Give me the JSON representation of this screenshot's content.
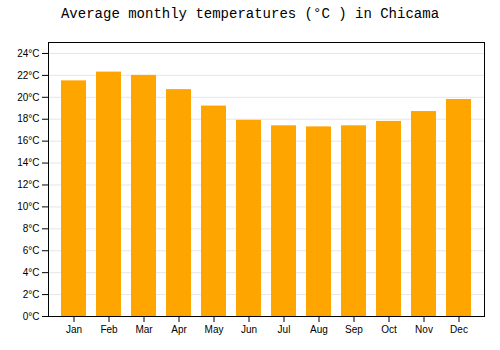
{
  "chart_data": {
    "type": "bar",
    "title": "Average monthly temperatures (°C ) in Chicama",
    "categories": [
      "Jan",
      "Feb",
      "Mar",
      "Apr",
      "May",
      "Jun",
      "Jul",
      "Aug",
      "Sep",
      "Oct",
      "Nov",
      "Dec"
    ],
    "values": [
      21.5,
      22.3,
      22.0,
      20.7,
      19.2,
      17.9,
      17.4,
      17.3,
      17.4,
      17.8,
      18.7,
      19.8
    ],
    "color": "#FFA500",
    "ylim": [
      0,
      25
    ],
    "yticks": [
      {
        "value": 0,
        "label": "0°C"
      },
      {
        "value": 2,
        "label": "2°C"
      },
      {
        "value": 4,
        "label": "4°C"
      },
      {
        "value": 6,
        "label": "6°C"
      },
      {
        "value": 8,
        "label": "8°C"
      },
      {
        "value": 10,
        "label": "10°C"
      },
      {
        "value": 12,
        "label": "12°C"
      },
      {
        "value": 14,
        "label": "14°C"
      },
      {
        "value": 16,
        "label": "16°C"
      },
      {
        "value": 18,
        "label": "18°C"
      },
      {
        "value": 20,
        "label": "20°C"
      },
      {
        "value": 22,
        "label": "22°C"
      },
      {
        "value": 24,
        "label": "24°C"
      }
    ],
    "grid": true
  }
}
